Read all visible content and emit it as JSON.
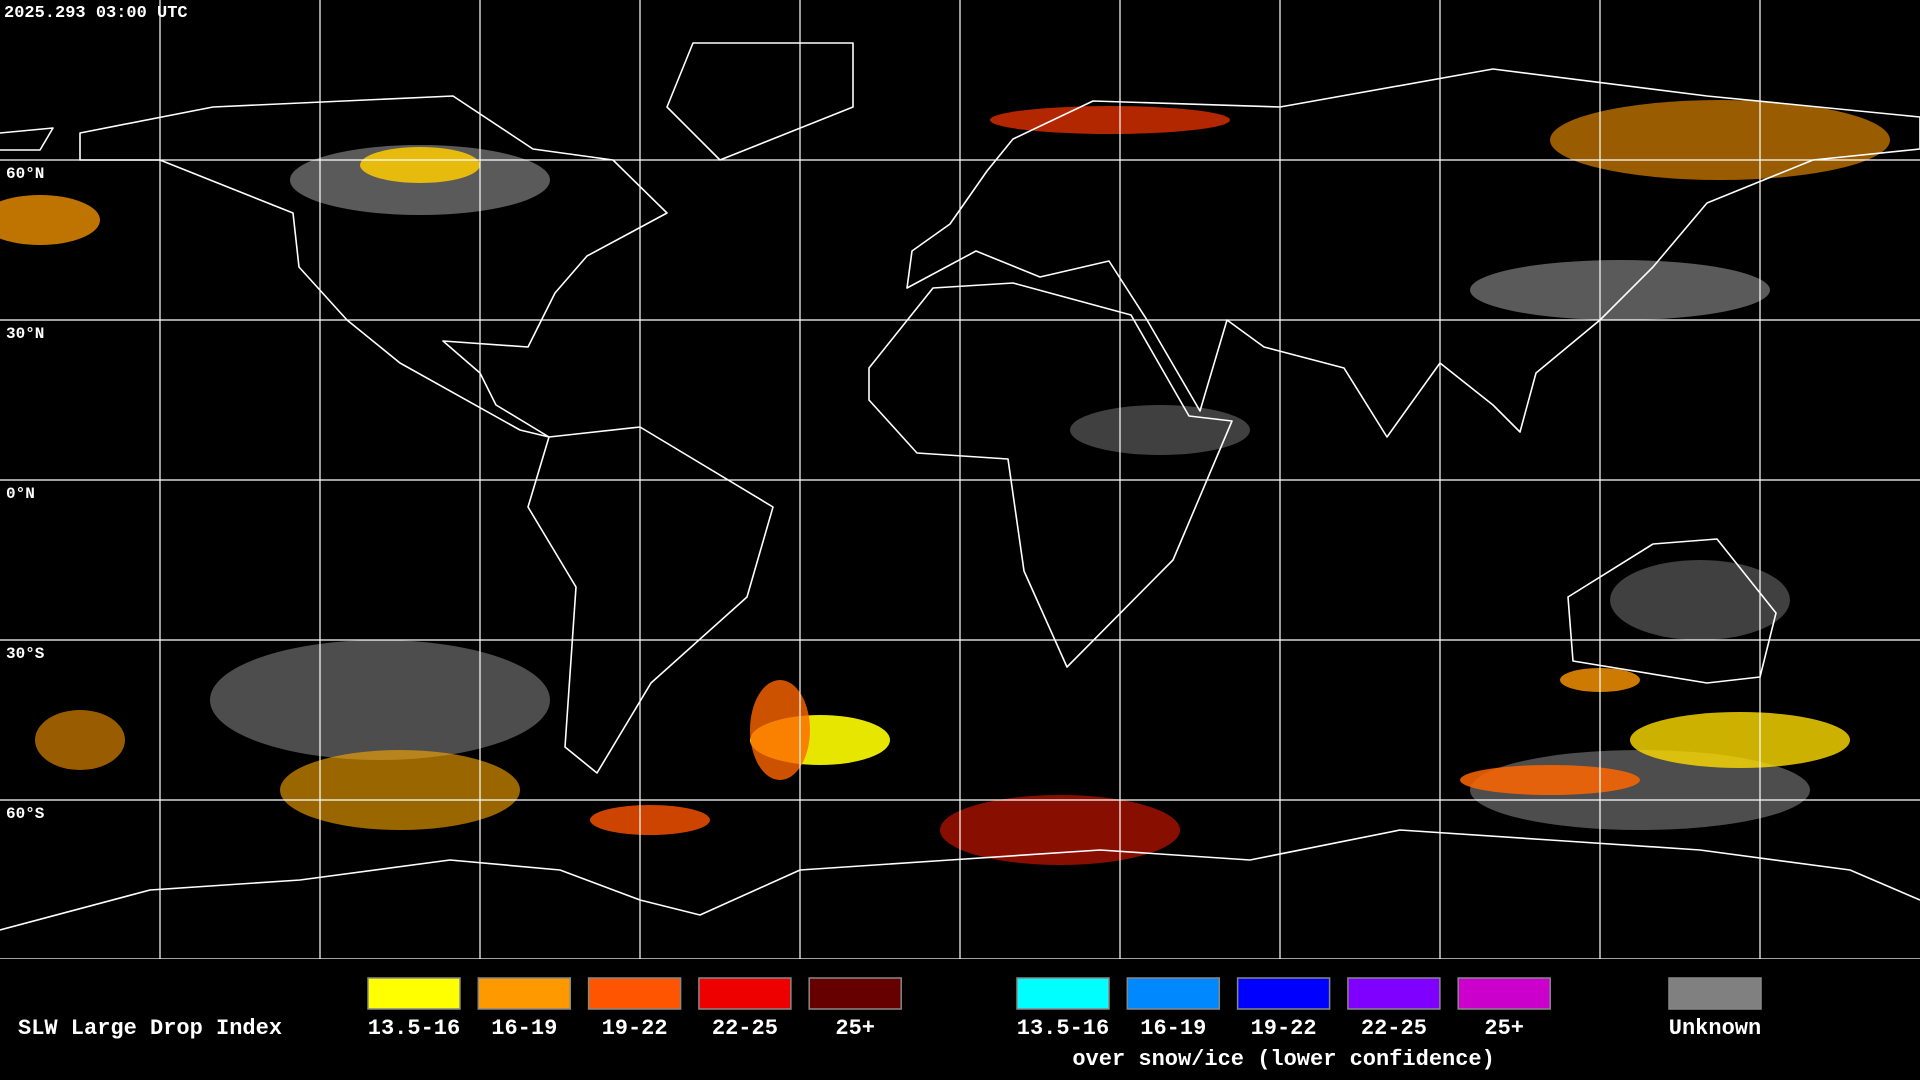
{
  "timestamp": "2025.293 03:00 UTC",
  "latitude_labels": [
    "60°N",
    "30°N",
    "0°N",
    "30°S",
    "60°S"
  ],
  "legend": {
    "title": "SLW Large Drop Index",
    "groups": [
      {
        "items": [
          {
            "label": "13.5-16",
            "color": "#ffff00"
          },
          {
            "label": "16-19",
            "color": "#ff9900"
          },
          {
            "label": "19-22",
            "color": "#ff5500"
          },
          {
            "label": "22-25",
            "color": "#ee0000"
          },
          {
            "label": "25+",
            "color": "#660000"
          }
        ]
      },
      {
        "items": [
          {
            "label": "13.5-16",
            "color": "#00ffff"
          },
          {
            "label": "16-19",
            "color": "#0088ff"
          },
          {
            "label": "19-22",
            "color": "#0000ff"
          },
          {
            "label": "22-25",
            "color": "#7f00ff"
          },
          {
            "label": "25+",
            "color": "#cc00cc"
          }
        ],
        "caption": "over snow/ice (lower confidence)"
      },
      {
        "items": [
          {
            "label": "Unknown",
            "color": "#808080"
          }
        ]
      }
    ]
  }
}
